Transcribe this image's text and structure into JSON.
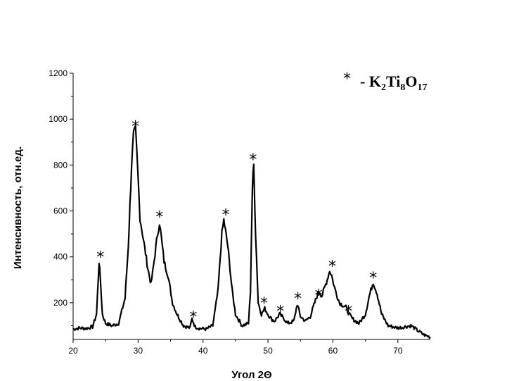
{
  "chart_data": {
    "type": "line",
    "title": "",
    "xlabel": "Угол 2Θ",
    "ylabel": "Интенсивность, отн.ед.",
    "xlim": [
      20,
      75
    ],
    "ylim": [
      40,
      1200
    ],
    "x_ticks": [
      20,
      30,
      40,
      50,
      60,
      70
    ],
    "y_ticks": [
      200,
      400,
      600,
      800,
      1000,
      1200
    ],
    "grid": false,
    "legend": {
      "marker": "*",
      "text_prefix": "- K",
      "sub1": "2",
      "text_mid": "Ti",
      "sub2": "8",
      "text_mid2": "O",
      "sub3": "17",
      "position": "top-right"
    },
    "series": [
      {
        "x": [
          20,
          21,
          22,
          23,
          23.6,
          24.0,
          24.2,
          24.5,
          25,
          26,
          27,
          28,
          28.5,
          29,
          29.3,
          29.6,
          29.9,
          30.3,
          30.8,
          31.5,
          32.0,
          32.6,
          33.0,
          33.3,
          33.6,
          34.0,
          34.6,
          35.3,
          36,
          37,
          38,
          38.3,
          38.8,
          39.5,
          40.5,
          41.5,
          42.3,
          42.9,
          43.2,
          43.8,
          44.5,
          45,
          46,
          47,
          47.3,
          47.6,
          47.8,
          48.1,
          48.5,
          49,
          49.5,
          50,
          50.5,
          51,
          51.8,
          52.5,
          53,
          54,
          54.5,
          55,
          55.8,
          56.5,
          57.2,
          57.8,
          58.3,
          59,
          59.5,
          59.8,
          60.2,
          61,
          62,
          62.5,
          63,
          64,
          65,
          65.6,
          66.2,
          66.8,
          67.5,
          68.5,
          70,
          71,
          72,
          73,
          74,
          75
        ],
        "y": [
          85,
          90,
          88,
          95,
          150,
          380,
          300,
          150,
          110,
          100,
          110,
          220,
          450,
          800,
          930,
          950,
          800,
          570,
          480,
          350,
          280,
          410,
          500,
          550,
          480,
          380,
          320,
          200,
          150,
          100,
          90,
          130,
          95,
          88,
          85,
          100,
          250,
          500,
          560,
          450,
          250,
          150,
          100,
          110,
          250,
          700,
          800,
          500,
          200,
          150,
          175,
          150,
          130,
          120,
          150,
          130,
          110,
          120,
          195,
          140,
          120,
          140,
          200,
          250,
          230,
          290,
          340,
          320,
          270,
          200,
          180,
          150,
          130,
          110,
          150,
          230,
          290,
          240,
          150,
          100,
          90,
          95,
          100,
          80,
          60,
          50
        ]
      }
    ],
    "peak_markers": [
      {
        "label": "*",
        "x": 24.2,
        "y": 400
      },
      {
        "label": "*",
        "x": 29.6,
        "y": 970
      },
      {
        "label": "*",
        "x": 33.3,
        "y": 575
      },
      {
        "label": "*",
        "x": 38.5,
        "y": 140
      },
      {
        "label": "*",
        "x": 43.5,
        "y": 585
      },
      {
        "label": "*",
        "x": 47.7,
        "y": 825
      },
      {
        "label": "*",
        "x": 49.4,
        "y": 200
      },
      {
        "label": "*",
        "x": 51.9,
        "y": 165
      },
      {
        "label": "*",
        "x": 54.6,
        "y": 220
      },
      {
        "label": "*",
        "x": 57.8,
        "y": 235
      },
      {
        "label": "*",
        "x": 59.9,
        "y": 360
      },
      {
        "label": "*",
        "x": 62.4,
        "y": 165
      },
      {
        "label": "*",
        "x": 66.2,
        "y": 310
      }
    ]
  }
}
